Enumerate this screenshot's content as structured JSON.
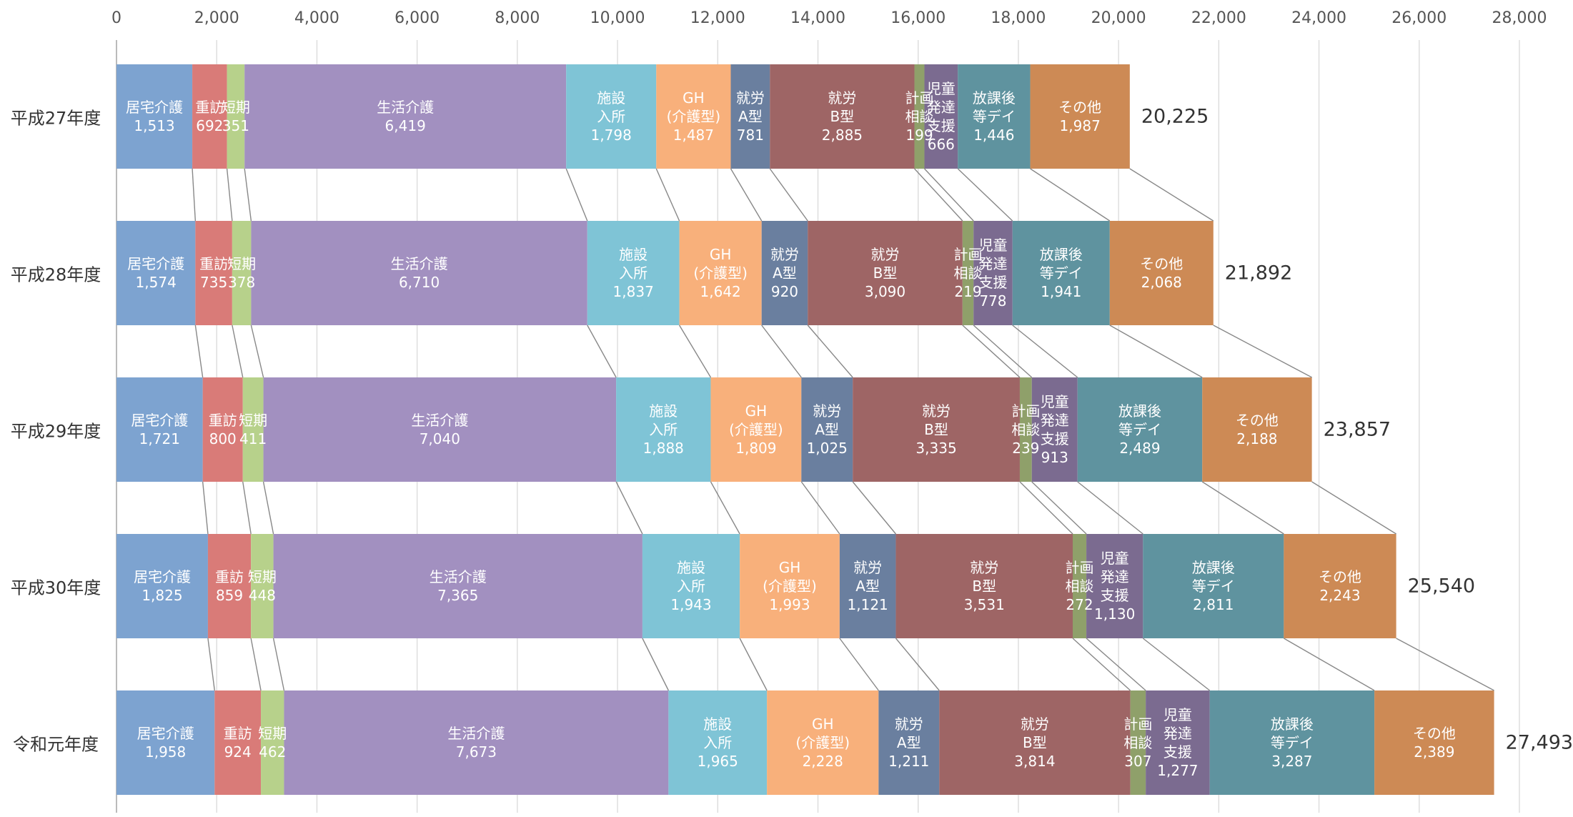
{
  "chart_data": {
    "type": "stacked_barh",
    "categories": [
      "平成27年度",
      "平成28年度",
      "平成29年度",
      "平成30年度",
      "令和元年度"
    ],
    "xlim": [
      0,
      28000
    ],
    "xticks": [
      0,
      {
        "value": 2000,
        "label": "2,000"
      },
      {
        "value": 4000,
        "label": "4,000"
      },
      {
        "value": 6000,
        "label": "6,000"
      },
      {
        "value": 8000,
        "label": "8,000"
      },
      {
        "value": 10000,
        "label": "10,000"
      },
      {
        "value": 12000,
        "label": "12,000"
      },
      {
        "value": 14000,
        "label": "14,000"
      },
      {
        "value": 16000,
        "label": "16,000"
      },
      {
        "value": 18000,
        "label": "18,000"
      },
      {
        "value": 20000,
        "label": "20,000"
      },
      {
        "value": 22000,
        "label": "22,000"
      },
      {
        "value": 24000,
        "label": "24,000"
      },
      {
        "value": 26000,
        "label": "26,000"
      },
      {
        "value": 28000,
        "label": "28,000"
      }
    ],
    "grid": true,
    "series": [
      {
        "name": "居宅介護",
        "color": "#7da3d0",
        "values": [
          1513,
          1574,
          1721,
          1825,
          1958
        ],
        "value_labels": [
          "1,513",
          "1,574",
          "1,721",
          "1,825",
          "1,958"
        ]
      },
      {
        "name": "重訪",
        "color": "#d97b78",
        "values": [
          692,
          735,
          800,
          859,
          924
        ]
      },
      {
        "name": "短期",
        "color": "#b7d18b",
        "values": [
          351,
          378,
          411,
          448,
          462
        ]
      },
      {
        "name": "生活介護",
        "color": "#a290c0",
        "values": [
          6419,
          6710,
          7040,
          7365,
          7673
        ],
        "value_labels": [
          "6,419",
          "6,710",
          "7,040",
          "7,365",
          "7,673"
        ]
      },
      {
        "name": "施設\n入所",
        "color": "#7fc4d6",
        "values": [
          1798,
          1837,
          1888,
          1943,
          1965
        ],
        "value_labels": [
          "1,798",
          "1,837",
          "1,888",
          "1,943",
          "1,965"
        ]
      },
      {
        "name": "GH\n(介護型)",
        "color": "#f8b07b",
        "values": [
          1487,
          1642,
          1809,
          1993,
          2228
        ],
        "value_labels": [
          "1,487",
          "1,642",
          "1,809",
          "1,993",
          "2,228"
        ]
      },
      {
        "name": "就労\nA型",
        "color": "#6a7f9f",
        "values": [
          781,
          920,
          1025,
          1121,
          1211
        ],
        "value_labels": [
          "781",
          "920",
          "1,025",
          "1,121",
          "1,211"
        ]
      },
      {
        "name": "就労\nB型",
        "color": "#9e6565",
        "values": [
          2885,
          3090,
          3335,
          3531,
          3814
        ],
        "value_labels": [
          "2,885",
          "3,090",
          "3,335",
          "3,531",
          "3,814"
        ]
      },
      {
        "name": "計画\n相談",
        "color": "#8fa06a",
        "values": [
          199,
          219,
          239,
          272,
          307
        ]
      },
      {
        "name": "児童\n発達\n支援",
        "color": "#7b6b90",
        "values": [
          666,
          778,
          913,
          1130,
          1277
        ],
        "value_labels": [
          "666",
          "778",
          "913",
          "1,130",
          "1,277"
        ]
      },
      {
        "name": "放課後\n等デイ",
        "color": "#5f939f",
        "values": [
          1446,
          1941,
          2489,
          2811,
          3287
        ],
        "value_labels": [
          "1,446",
          "1,941",
          "2,489",
          "2,811",
          "3,287"
        ]
      },
      {
        "name": "その他",
        "color": "#cd8a55",
        "values": [
          1987,
          2068,
          2188,
          2243,
          2389
        ],
        "value_labels": [
          "1,987",
          "2,068",
          "2,188",
          "2,243",
          "2,389"
        ]
      }
    ],
    "totals": {
      "values": [
        20225,
        21892,
        23857,
        25540,
        27493
      ],
      "value_labels": [
        "20,225",
        "21,892",
        "23,857",
        "25,540",
        "27,493"
      ]
    }
  }
}
